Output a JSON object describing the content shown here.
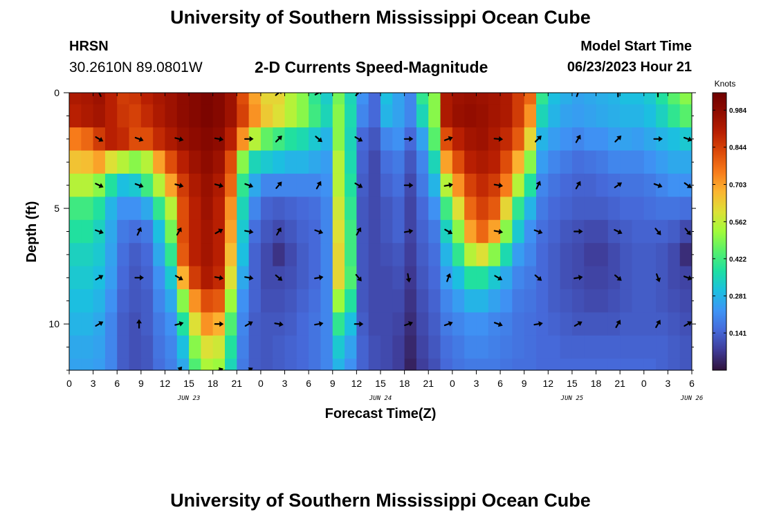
{
  "header": {
    "title": "University of Southern Mississippi Ocean Cube",
    "station_name": "HRSN",
    "station_coords": "30.2610N  89.0801W",
    "subtitle": "2-D Currents Speed-Magnitude",
    "start_label": "Model Start Time",
    "start_value": "06/23/2023 Hour 21"
  },
  "footer": {
    "title": "University of Southern Mississippi Ocean Cube"
  },
  "chart_data": {
    "type": "heatmap",
    "title": "2-D Currents Speed-Magnitude",
    "xlabel": "Forecast Time(Z)",
    "ylabel": "Depth (ft)",
    "x_tick_labels": [
      "0",
      "3",
      "6",
      "9",
      "12",
      "15",
      "18",
      "21",
      "0",
      "3",
      "6",
      "9",
      "12",
      "15",
      "18",
      "21",
      "0",
      "3",
      "6",
      "9",
      "12",
      "15",
      "18",
      "21",
      "0",
      "3",
      "6"
    ],
    "x_date_labels": [
      {
        "label": "JUN 23",
        "tick_index": 5
      },
      {
        "label": "JUN 24",
        "tick_index": 13
      },
      {
        "label": "JUN 25",
        "tick_index": 21
      },
      {
        "label": "JUN 26",
        "tick_index": 26
      }
    ],
    "x_range_hours": [
      0,
      78
    ],
    "y_ticks": [
      0,
      5,
      10
    ],
    "y_tick_labels": [
      "0",
      "5",
      "10"
    ],
    "y_range_ft": [
      0,
      12
    ],
    "depth_levels_ft": [
      0,
      1,
      2,
      3,
      4,
      5,
      6,
      7,
      8,
      9,
      10,
      11,
      12
    ],
    "colorbar": {
      "unit": "Knots",
      "tick_labels": [
        "0.984",
        "0.844",
        "0.703",
        "0.562",
        "0.422",
        "0.281",
        "0.141"
      ],
      "tick_values": [
        0.984,
        0.844,
        0.703,
        0.562,
        0.422,
        0.281,
        0.141
      ],
      "range": [
        0.0,
        1.05
      ],
      "colors": [
        "#30123b",
        "#3f3b97",
        "#4669d9",
        "#3e94f5",
        "#1cbfe0",
        "#1ddfa3",
        "#56f06b",
        "#a1fb3a",
        "#dde036",
        "#fbb531",
        "#f77b1a",
        "#dc4a09",
        "#b81f02",
        "#900c00",
        "#6e0000"
      ]
    },
    "speed_by_depth": [
      [
        0.92,
        0.93,
        0.95,
        0.9,
        0.85,
        0.86,
        0.9,
        0.93,
        0.95,
        0.98,
        1.0,
        1.02,
        1.0,
        0.95,
        0.82,
        0.7,
        0.62,
        0.62,
        0.55,
        0.5,
        0.4,
        0.33,
        0.48,
        0.35,
        0.22,
        0.15,
        0.3,
        0.25,
        0.2,
        0.4,
        0.5,
        0.92,
        0.95,
        0.96,
        0.95,
        0.94,
        0.92,
        0.85,
        0.78,
        0.4,
        0.3,
        0.27,
        0.25,
        0.26,
        0.27,
        0.28,
        0.3,
        0.3,
        0.32,
        0.38,
        0.45,
        0.5
      ],
      [
        0.9,
        0.92,
        0.94,
        0.9,
        0.86,
        0.84,
        0.88,
        0.92,
        0.95,
        0.98,
        1.0,
        1.02,
        1.0,
        0.95,
        0.84,
        0.72,
        0.64,
        0.6,
        0.55,
        0.5,
        0.42,
        0.35,
        0.5,
        0.36,
        0.2,
        0.15,
        0.28,
        0.25,
        0.2,
        0.35,
        0.5,
        0.92,
        0.96,
        0.97,
        0.96,
        0.94,
        0.92,
        0.85,
        0.72,
        0.35,
        0.28,
        0.25,
        0.24,
        0.25,
        0.26,
        0.27,
        0.28,
        0.28,
        0.3,
        0.34,
        0.4,
        0.45
      ],
      [
        0.75,
        0.78,
        0.85,
        0.9,
        0.88,
        0.82,
        0.82,
        0.88,
        0.92,
        0.96,
        0.98,
        1.0,
        0.98,
        0.9,
        0.72,
        0.55,
        0.46,
        0.42,
        0.38,
        0.36,
        0.32,
        0.28,
        0.5,
        0.35,
        0.15,
        0.12,
        0.2,
        0.22,
        0.15,
        0.25,
        0.45,
        0.82,
        0.9,
        0.94,
        0.95,
        0.92,
        0.88,
        0.8,
        0.62,
        0.28,
        0.24,
        0.22,
        0.2,
        0.22,
        0.22,
        0.24,
        0.25,
        0.24,
        0.26,
        0.28,
        0.3,
        0.32
      ],
      [
        0.65,
        0.66,
        0.7,
        0.6,
        0.55,
        0.5,
        0.55,
        0.7,
        0.82,
        0.9,
        0.95,
        0.98,
        0.95,
        0.82,
        0.5,
        0.35,
        0.32,
        0.3,
        0.28,
        0.28,
        0.26,
        0.24,
        0.55,
        0.36,
        0.14,
        0.1,
        0.16,
        0.18,
        0.12,
        0.2,
        0.35,
        0.7,
        0.82,
        0.9,
        0.92,
        0.9,
        0.82,
        0.68,
        0.5,
        0.24,
        0.2,
        0.18,
        0.16,
        0.17,
        0.18,
        0.2,
        0.2,
        0.2,
        0.22,
        0.24,
        0.26,
        0.26
      ],
      [
        0.55,
        0.55,
        0.5,
        0.38,
        0.3,
        0.32,
        0.42,
        0.55,
        0.7,
        0.85,
        0.92,
        0.96,
        0.92,
        0.78,
        0.4,
        0.26,
        0.2,
        0.2,
        0.2,
        0.2,
        0.2,
        0.22,
        0.55,
        0.38,
        0.13,
        0.1,
        0.14,
        0.16,
        0.1,
        0.18,
        0.28,
        0.55,
        0.72,
        0.84,
        0.88,
        0.85,
        0.75,
        0.55,
        0.38,
        0.2,
        0.17,
        0.15,
        0.14,
        0.14,
        0.15,
        0.16,
        0.17,
        0.17,
        0.18,
        0.2,
        0.22,
        0.22
      ],
      [
        0.42,
        0.42,
        0.38,
        0.28,
        0.22,
        0.22,
        0.26,
        0.4,
        0.55,
        0.82,
        0.9,
        0.95,
        0.9,
        0.72,
        0.35,
        0.2,
        0.14,
        0.13,
        0.14,
        0.15,
        0.16,
        0.2,
        0.58,
        0.4,
        0.12,
        0.1,
        0.12,
        0.14,
        0.09,
        0.15,
        0.22,
        0.42,
        0.6,
        0.78,
        0.84,
        0.8,
        0.62,
        0.4,
        0.28,
        0.18,
        0.15,
        0.14,
        0.13,
        0.13,
        0.13,
        0.14,
        0.15,
        0.15,
        0.16,
        0.17,
        0.17,
        0.16
      ],
      [
        0.38,
        0.38,
        0.34,
        0.26,
        0.18,
        0.16,
        0.18,
        0.3,
        0.48,
        0.82,
        0.9,
        0.94,
        0.9,
        0.7,
        0.32,
        0.16,
        0.12,
        0.1,
        0.12,
        0.14,
        0.15,
        0.2,
        0.6,
        0.42,
        0.12,
        0.1,
        0.12,
        0.14,
        0.09,
        0.14,
        0.18,
        0.34,
        0.5,
        0.7,
        0.78,
        0.7,
        0.5,
        0.32,
        0.22,
        0.16,
        0.14,
        0.12,
        0.11,
        0.1,
        0.1,
        0.12,
        0.13,
        0.14,
        0.14,
        0.14,
        0.13,
        0.1
      ],
      [
        0.34,
        0.34,
        0.32,
        0.25,
        0.16,
        0.13,
        0.15,
        0.26,
        0.4,
        0.8,
        0.9,
        0.94,
        0.9,
        0.66,
        0.3,
        0.14,
        0.1,
        0.06,
        0.1,
        0.13,
        0.15,
        0.2,
        0.62,
        0.42,
        0.12,
        0.1,
        0.11,
        0.12,
        0.08,
        0.13,
        0.16,
        0.28,
        0.4,
        0.55,
        0.6,
        0.5,
        0.36,
        0.24,
        0.2,
        0.15,
        0.13,
        0.11,
        0.1,
        0.08,
        0.08,
        0.1,
        0.12,
        0.13,
        0.13,
        0.12,
        0.1,
        0.05
      ],
      [
        0.32,
        0.32,
        0.3,
        0.24,
        0.15,
        0.12,
        0.14,
        0.22,
        0.32,
        0.68,
        0.85,
        0.92,
        0.88,
        0.6,
        0.26,
        0.14,
        0.1,
        0.1,
        0.11,
        0.13,
        0.15,
        0.2,
        0.62,
        0.44,
        0.12,
        0.1,
        0.1,
        0.11,
        0.07,
        0.12,
        0.15,
        0.24,
        0.3,
        0.38,
        0.38,
        0.32,
        0.26,
        0.2,
        0.18,
        0.15,
        0.13,
        0.11,
        0.1,
        0.09,
        0.09,
        0.1,
        0.12,
        0.13,
        0.13,
        0.12,
        0.1,
        0.09
      ],
      [
        0.3,
        0.3,
        0.28,
        0.22,
        0.14,
        0.12,
        0.13,
        0.2,
        0.26,
        0.5,
        0.72,
        0.82,
        0.8,
        0.52,
        0.22,
        0.14,
        0.11,
        0.11,
        0.12,
        0.14,
        0.16,
        0.2,
        0.52,
        0.38,
        0.12,
        0.1,
        0.1,
        0.1,
        0.06,
        0.11,
        0.14,
        0.2,
        0.24,
        0.28,
        0.28,
        0.25,
        0.22,
        0.18,
        0.17,
        0.15,
        0.13,
        0.12,
        0.11,
        0.1,
        0.1,
        0.11,
        0.12,
        0.13,
        0.13,
        0.12,
        0.11,
        0.1
      ],
      [
        0.28,
        0.28,
        0.26,
        0.2,
        0.13,
        0.11,
        0.13,
        0.18,
        0.22,
        0.38,
        0.6,
        0.72,
        0.68,
        0.44,
        0.2,
        0.13,
        0.12,
        0.12,
        0.13,
        0.15,
        0.17,
        0.2,
        0.4,
        0.3,
        0.13,
        0.1,
        0.1,
        0.09,
        0.05,
        0.1,
        0.13,
        0.18,
        0.2,
        0.22,
        0.22,
        0.2,
        0.19,
        0.17,
        0.16,
        0.15,
        0.14,
        0.13,
        0.12,
        0.12,
        0.12,
        0.12,
        0.13,
        0.13,
        0.13,
        0.13,
        0.12,
        0.11
      ],
      [
        0.26,
        0.26,
        0.25,
        0.2,
        0.13,
        0.11,
        0.12,
        0.17,
        0.2,
        0.3,
        0.5,
        0.6,
        0.58,
        0.38,
        0.19,
        0.13,
        0.12,
        0.13,
        0.14,
        0.15,
        0.17,
        0.2,
        0.32,
        0.25,
        0.14,
        0.11,
        0.1,
        0.08,
        0.04,
        0.09,
        0.12,
        0.16,
        0.18,
        0.2,
        0.2,
        0.19,
        0.18,
        0.17,
        0.16,
        0.15,
        0.15,
        0.14,
        0.14,
        0.14,
        0.14,
        0.14,
        0.14,
        0.14,
        0.14,
        0.14,
        0.13,
        0.12
      ],
      [
        0.25,
        0.25,
        0.24,
        0.2,
        0.13,
        0.11,
        0.12,
        0.16,
        0.19,
        0.26,
        0.44,
        0.54,
        0.52,
        0.35,
        0.18,
        0.13,
        0.12,
        0.13,
        0.14,
        0.15,
        0.17,
        0.2,
        0.28,
        0.22,
        0.14,
        0.11,
        0.1,
        0.08,
        0.03,
        0.08,
        0.11,
        0.15,
        0.17,
        0.18,
        0.18,
        0.18,
        0.17,
        0.16,
        0.16,
        0.15,
        0.15,
        0.15,
        0.15,
        0.15,
        0.15,
        0.15,
        0.15,
        0.15,
        0.15,
        0.14,
        0.13,
        0.12
      ]
    ],
    "arrow_depths_ft": [
      0,
      2,
      4,
      6,
      8,
      10,
      12
    ],
    "arrow_hours": [
      3.75,
      8.75,
      13.75,
      18.75,
      22.5,
      26.25,
      31.25,
      36.25,
      42.5,
      47.5,
      53.75,
      58.75,
      63.75,
      68.75,
      73.75,
      77.5
    ],
    "arrow_directions_deg": [
      [
        -25,
        null,
        null,
        null,
        null,
        50,
        60,
        45,
        null,
        null,
        null,
        null,
        20,
        0,
        0,
        null
      ],
      [
        120,
        110,
        105,
        100,
        90,
        45,
        130,
        120,
        90,
        70,
        95,
        45,
        30,
        45,
        90,
        110
      ],
      [
        115,
        110,
        105,
        105,
        110,
        40,
        30,
        120,
        90,
        80,
        100,
        25,
        30,
        55,
        110,
        125
      ],
      [
        110,
        25,
        30,
        60,
        100,
        30,
        110,
        30,
        80,
        120,
        100,
        110,
        90,
        115,
        140,
        140
      ],
      [
        60,
        90,
        120,
        100,
        100,
        130,
        80,
        140,
        170,
        20,
        120,
        130,
        80,
        130,
        160,
        110
      ],
      [
        60,
        0,
        75,
        90,
        60,
        100,
        80,
        90,
        70,
        70,
        110,
        80,
        60,
        30,
        30,
        60
      ],
      [
        null,
        null,
        40,
        70,
        60,
        null,
        null,
        null,
        null,
        null,
        null,
        null,
        null,
        null,
        null,
        null
      ]
    ]
  }
}
